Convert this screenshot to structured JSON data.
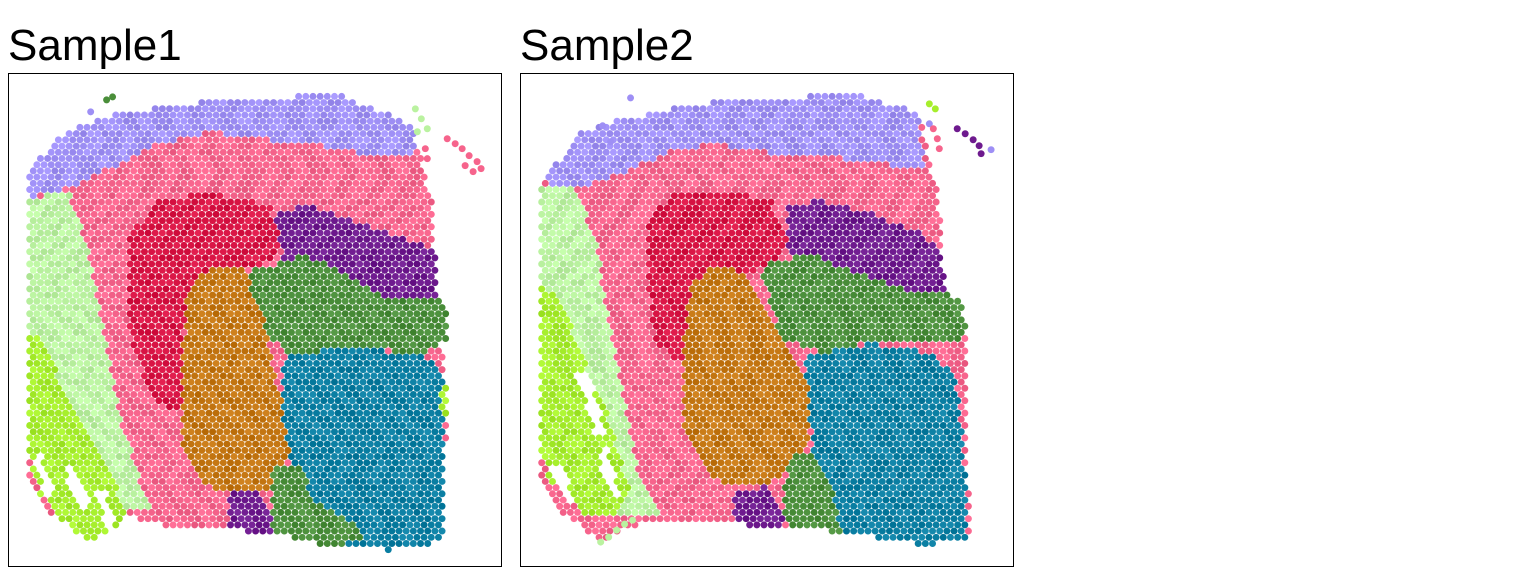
{
  "chart_data": [
    {
      "type": "scatter",
      "title": "Sample1",
      "xlabel": "",
      "ylabel": "",
      "grid": false,
      "legend": "none",
      "point_shape": "hexagonal spot grid",
      "clusters": [
        {
          "id": "violet",
          "color": "#9e8ff5"
        },
        {
          "id": "pink",
          "color": "#f6648c"
        },
        {
          "id": "crimson",
          "color": "#d81444"
        },
        {
          "id": "purple",
          "color": "#6e1a8e"
        },
        {
          "id": "green",
          "color": "#4a8e3a"
        },
        {
          "id": "orange",
          "color": "#c47612"
        },
        {
          "id": "teal",
          "color": "#0a7ea2"
        },
        {
          "id": "lightgreen",
          "color": "#baf2a0"
        },
        {
          "id": "lime",
          "color": "#a6ee2c"
        }
      ]
    },
    {
      "type": "scatter",
      "title": "Sample2",
      "xlabel": "",
      "ylabel": "",
      "grid": false,
      "legend": "none",
      "point_shape": "hexagonal spot grid",
      "clusters": [
        {
          "id": "violet",
          "color": "#9e8ff5"
        },
        {
          "id": "pink",
          "color": "#f6648c"
        },
        {
          "id": "crimson",
          "color": "#d81444"
        },
        {
          "id": "purple",
          "color": "#6e1a8e"
        },
        {
          "id": "green",
          "color": "#4a8e3a"
        },
        {
          "id": "orange",
          "color": "#c47612"
        },
        {
          "id": "teal",
          "color": "#0a7ea2"
        },
        {
          "id": "lightgreen",
          "color": "#baf2a0"
        },
        {
          "id": "lime",
          "color": "#a6ee2c"
        }
      ]
    }
  ]
}
